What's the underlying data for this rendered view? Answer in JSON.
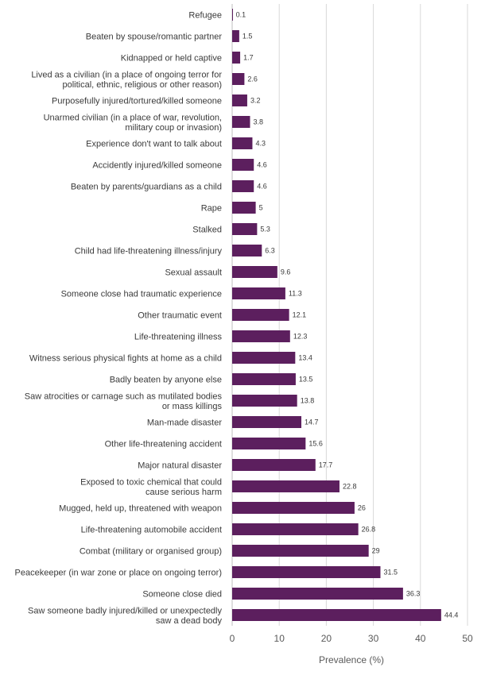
{
  "chart_data": {
    "type": "bar",
    "orientation": "horizontal",
    "bar_color": "#5c1f5e",
    "xlabel": "Prevalence (%)",
    "ylabel": "",
    "xlim": [
      0,
      50
    ],
    "xticks": [
      0,
      10,
      20,
      30,
      40,
      50
    ],
    "grid": true,
    "categories": [
      [
        "Refugee"
      ],
      [
        "Beaten by spouse/romantic partner"
      ],
      [
        "Kidnapped or held captive"
      ],
      [
        "Lived as a civilian (in a place of ongoing terror for",
        "political, ethnic, religious or other reason)"
      ],
      [
        "Purposefully injured/tortured/killed someone"
      ],
      [
        "Unarmed civilian (in a place of war, revolution,",
        "military coup or invasion)"
      ],
      [
        "Experience don't want to talk about"
      ],
      [
        "Accidently injured/killed someone"
      ],
      [
        "Beaten by parents/guardians as a child"
      ],
      [
        "Rape"
      ],
      [
        "Stalked"
      ],
      [
        "Child had life-threatening illness/injury"
      ],
      [
        "Sexual assault"
      ],
      [
        "Someone close had traumatic experience"
      ],
      [
        "Other traumatic event"
      ],
      [
        "Life-threatening illness"
      ],
      [
        "Witness serious physical fights at home as a child"
      ],
      [
        "Badly beaten by anyone else"
      ],
      [
        "Saw atrocities or carnage such as mutilated bodies",
        "or mass killings"
      ],
      [
        "Man-made disaster"
      ],
      [
        "Other life-threatening accident"
      ],
      [
        "Major natural disaster"
      ],
      [
        "Exposed to toxic chemical that could",
        "cause serious harm"
      ],
      [
        "Mugged, held up, threatened with weapon"
      ],
      [
        "Life-threatening automobile accident"
      ],
      [
        "Combat (military or organised group)"
      ],
      [
        "Peacekeeper (in war zone or place on ongoing terror)"
      ],
      [
        "Someone close died"
      ],
      [
        "Saw someone badly injured/killed or unexpectedly",
        "saw a dead body"
      ]
    ],
    "values": [
      0.1,
      1.5,
      1.7,
      2.6,
      3.2,
      3.8,
      4.3,
      4.6,
      4.6,
      5,
      5.3,
      6.3,
      9.6,
      11.3,
      12.1,
      12.3,
      13.4,
      13.5,
      13.8,
      14.7,
      15.6,
      17.7,
      22.8,
      26,
      26.8,
      29,
      31.5,
      36.3,
      44.4
    ]
  }
}
